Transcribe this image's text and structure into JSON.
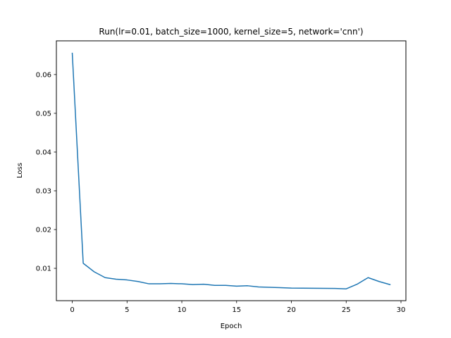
{
  "chart_data": {
    "type": "line",
    "title": "Run(lr=0.01, batch_size=1000, kernel_size=5, network='cnn')",
    "xlabel": "Epoch",
    "ylabel": "Loss",
    "xlim": [
      -1.45,
      30.45
    ],
    "ylim": [
      0.00165,
      0.0687
    ],
    "x_ticks": [
      0,
      5,
      10,
      15,
      20,
      25,
      30
    ],
    "y_ticks": [
      0.01,
      0.02,
      0.03,
      0.04,
      0.05,
      0.06
    ],
    "x_tick_labels": [
      "0",
      "5",
      "10",
      "15",
      "20",
      "25",
      "30"
    ],
    "y_tick_labels": [
      "0.01",
      "0.02",
      "0.03",
      "0.04",
      "0.05",
      "0.06"
    ],
    "grid": false,
    "series": [
      {
        "name": "loss",
        "color": "#1f77b4",
        "x": [
          0,
          1,
          2,
          3,
          4,
          5,
          6,
          7,
          8,
          9,
          10,
          11,
          12,
          13,
          14,
          15,
          16,
          17,
          18,
          19,
          20,
          21,
          22,
          23,
          24,
          25,
          26,
          27,
          28,
          29
        ],
        "values": [
          0.0655,
          0.0113,
          0.0091,
          0.0076,
          0.0072,
          0.007,
          0.0066,
          0.006,
          0.006,
          0.0061,
          0.006,
          0.0058,
          0.0059,
          0.0056,
          0.0056,
          0.0054,
          0.0055,
          0.0052,
          0.0051,
          0.005,
          0.0049,
          0.00488,
          0.00485,
          0.00483,
          0.0048,
          0.0047,
          0.0059,
          0.0076,
          0.0066,
          0.0058
        ]
      }
    ]
  }
}
